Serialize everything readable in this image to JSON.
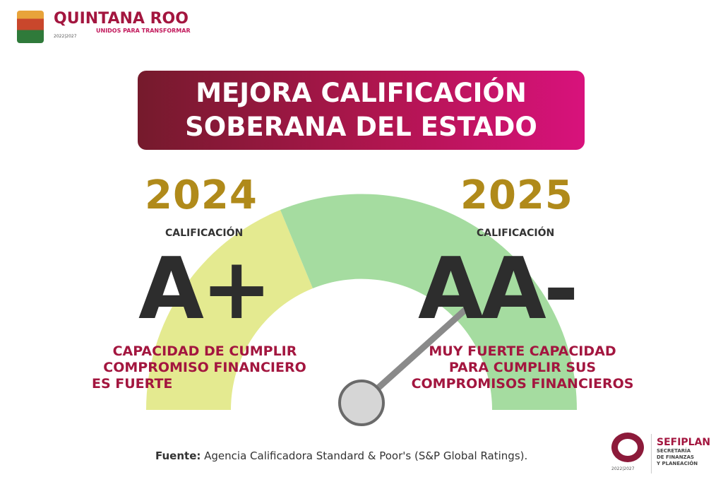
{
  "header": {
    "logo_title": "QUINTANA ROO",
    "logo_tagline": "UNIDOS PARA TRANSFORMAR",
    "logo_years": "2022|2027"
  },
  "banner": {
    "line1": "MEJORA CALIFICACIÓN",
    "line2": "SOBERANA DEL ESTADO"
  },
  "left": {
    "year": "2024",
    "label": "CALIFICACIÓN",
    "grade": "A+",
    "description": [
      "CAPACIDAD DE CUMPLIR",
      "COMPROMISO FINANCIERO",
      "ES FUERTE"
    ]
  },
  "right": {
    "year": "2025",
    "label": "CALIFICACIÓN",
    "grade": "AA-",
    "description": [
      "MUY FUERTE CAPACIDAD",
      "PARA CUMPLIR SUS",
      "COMPROMISOS FINANCIEROS"
    ]
  },
  "gauge": {
    "colors": {
      "low": "#e4ea90",
      "high": "#a5dca0"
    }
  },
  "footer": {
    "source_label": "Fuente:",
    "source_text": " Agencia Calificadora Standard & Poor's (S&P Global Ratings)."
  },
  "sefiplan": {
    "name": "SEFIPLAN",
    "sub": [
      "SECRETARÍA",
      "DE FINANZAS",
      "Y PLANEACIÓN"
    ],
    "years": "2022|2027"
  },
  "colors": {
    "brand": "#a3163f",
    "gold": "#b08a1a",
    "dark": "#2d2d2d"
  }
}
